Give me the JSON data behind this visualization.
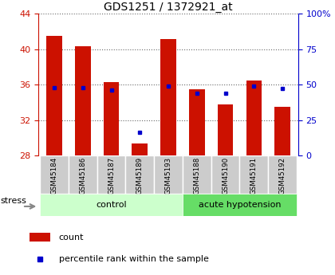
{
  "title": "GDS1251 / 1372921_at",
  "samples": [
    "GSM45184",
    "GSM45186",
    "GSM45187",
    "GSM45189",
    "GSM45193",
    "GSM45188",
    "GSM45190",
    "GSM45191",
    "GSM45192"
  ],
  "counts": [
    41.5,
    40.3,
    36.3,
    29.3,
    41.1,
    35.5,
    33.8,
    36.5,
    33.5
  ],
  "percentiles": [
    48,
    48,
    46,
    16,
    49,
    44,
    44,
    49,
    47
  ],
  "ylim_left": [
    28,
    44
  ],
  "ylim_right": [
    0,
    100
  ],
  "yticks_left": [
    28,
    32,
    36,
    40,
    44
  ],
  "yticks_right": [
    0,
    25,
    50,
    75,
    100
  ],
  "ytick_labels_right": [
    "0",
    "25",
    "50",
    "75",
    "100%"
  ],
  "bar_color": "#cc1100",
  "dot_color": "#0000cc",
  "tick_color_left": "#cc1100",
  "tick_color_right": "#0000cc",
  "legend_count_label": "count",
  "legend_pct_label": "percentile rank within the sample",
  "stress_label": "stress",
  "title_fontsize": 10,
  "bar_width": 0.55,
  "control_indices": [
    0,
    1,
    2,
    3,
    4
  ],
  "hypotension_indices": [
    5,
    6,
    7,
    8
  ],
  "control_label": "control",
  "hypotension_label": "acute hypotension",
  "control_color": "#ccffcc",
  "hypotension_color": "#66dd66"
}
